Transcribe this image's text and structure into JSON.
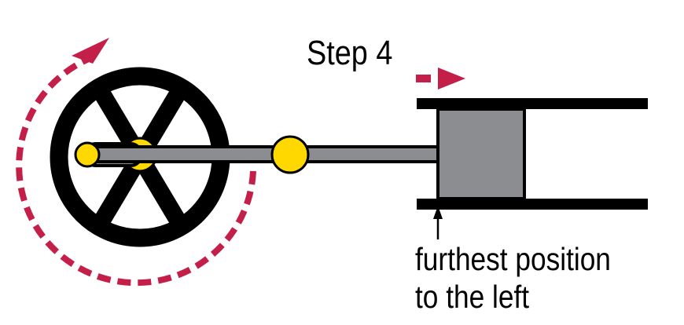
{
  "diagram": {
    "step_label": "Step 4",
    "caption": {
      "line1": "furthest position",
      "line2": "to the left"
    }
  },
  "colors": {
    "ink": "#000000",
    "rod": "#8c8d90",
    "piston": "#8c8d90",
    "joint": "#ffd800",
    "arrow": "#c41f48",
    "background": "#ffffff"
  }
}
